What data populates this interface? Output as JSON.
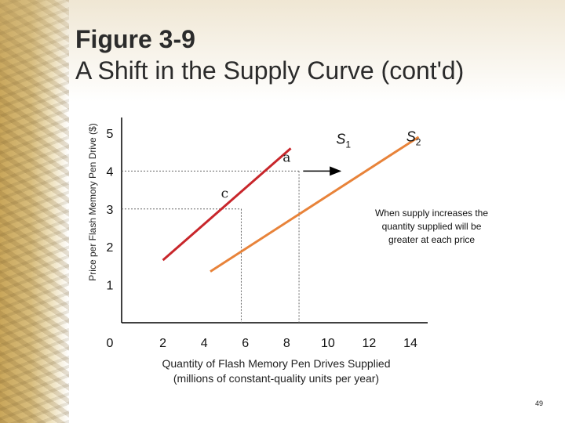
{
  "slide": {
    "title_line1": "Figure 3-9",
    "title_line2": "A Shift in the Supply Curve (cont'd)",
    "page_number": "49"
  },
  "chart_data": {
    "type": "line",
    "ylabel": "Price per Flash Memory Pen Drive ($)",
    "xlabel_line1": "Quantity of Flash Memory Pen Drives Supplied",
    "xlabel_line2": "(millions of constant-quality units per year)",
    "xlim": [
      0,
      14
    ],
    "ylim": [
      0,
      5
    ],
    "x_ticks": [
      {
        "value": 0,
        "label": "0"
      },
      {
        "value": 2,
        "label": "2"
      },
      {
        "value": 4,
        "label": "4"
      },
      {
        "value": 6,
        "label": "6"
      },
      {
        "value": 8,
        "label": "8"
      },
      {
        "value": 10,
        "label": "10"
      },
      {
        "value": 12,
        "label": "12"
      },
      {
        "value": 14,
        "label": "14"
      }
    ],
    "y_ticks": [
      {
        "value": 1,
        "label": "1"
      },
      {
        "value": 2,
        "label": "2"
      },
      {
        "value": 3,
        "label": "3"
      },
      {
        "value": 4,
        "label": "4"
      },
      {
        "value": 5,
        "label": "5"
      }
    ],
    "series": [
      {
        "label_main": "S",
        "label_sub": "1",
        "color": "#c8262b",
        "x": [
          2.0,
          8.2
        ],
        "y": [
          1.65,
          4.6
        ]
      },
      {
        "label_main": "S",
        "label_sub": "2",
        "color": "#e8833a",
        "x": [
          4.3,
          14.4
        ],
        "y": [
          1.35,
          4.9
        ]
      }
    ],
    "guides": [
      {
        "name": "price-4-guide",
        "x": [
          0,
          8.6
        ],
        "y": [
          4,
          4
        ],
        "drop_x": 8.6
      },
      {
        "name": "price-3-guide",
        "x": [
          0,
          5.8
        ],
        "y": [
          3,
          3
        ],
        "drop_x": 5.8
      }
    ],
    "points": [
      {
        "label": "a",
        "x": 8.0,
        "y": 4.25
      },
      {
        "label": "c",
        "x": 5.0,
        "y": 3.3
      }
    ],
    "shift_arrow": {
      "x": [
        8.8,
        10.6
      ],
      "y": [
        4.0,
        4.0
      ]
    },
    "annotation": "When supply increases the quantity supplied will be greater at each price",
    "grid": false
  }
}
